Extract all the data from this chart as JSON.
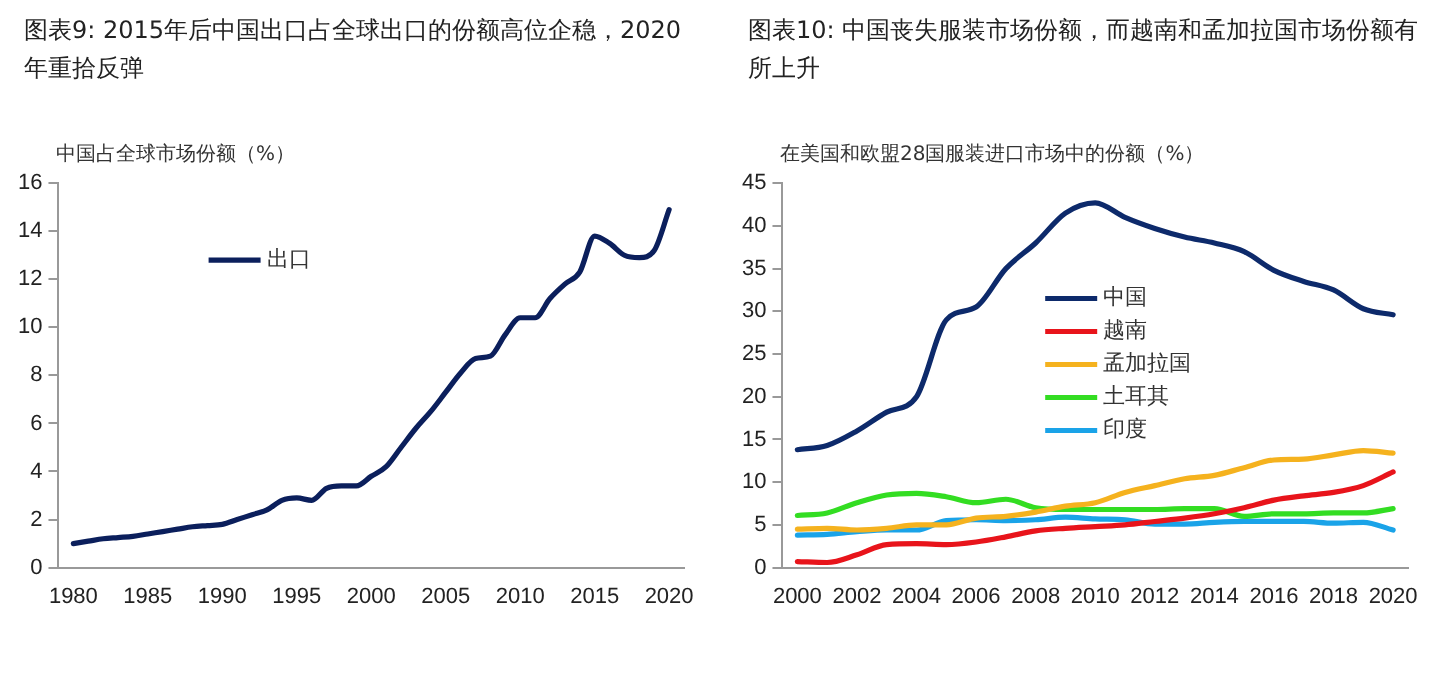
{
  "chart_data": [
    {
      "type": "line",
      "title": "图表9: 2015年后中国出口占全球出口的份额高位企稳，2020年重拾反弹",
      "ylabel": "中国占全球市场份额（%）",
      "x": [
        1980,
        1981,
        1982,
        1983,
        1984,
        1985,
        1986,
        1987,
        1988,
        1989,
        1990,
        1991,
        1992,
        1993,
        1994,
        1995,
        1996,
        1997,
        1998,
        1999,
        2000,
        2001,
        2002,
        2003,
        2004,
        2005,
        2006,
        2007,
        2008,
        2009,
        2010,
        2011,
        2012,
        2013,
        2014,
        2015,
        2016,
        2017,
        2018,
        2019,
        2020
      ],
      "series": [
        {
          "name": "出口",
          "color": "#0b1f5c",
          "values": [
            1.0,
            1.1,
            1.2,
            1.25,
            1.3,
            1.4,
            1.5,
            1.6,
            1.7,
            1.75,
            1.8,
            2.0,
            2.2,
            2.4,
            2.8,
            2.9,
            2.8,
            3.3,
            3.4,
            3.4,
            3.8,
            4.2,
            5.0,
            5.8,
            6.5,
            7.3,
            8.1,
            8.7,
            8.8,
            9.7,
            10.4,
            10.4,
            11.2,
            11.8,
            12.3,
            13.8,
            13.5,
            13.0,
            12.9,
            13.2,
            14.9
          ]
        }
      ],
      "xlim": [
        1979,
        2021
      ],
      "xticks": [
        1980,
        1985,
        1990,
        1995,
        2000,
        2005,
        2010,
        2015,
        2020
      ],
      "ylim": [
        0,
        16
      ],
      "yticks": [
        0,
        2,
        4,
        6,
        8,
        10,
        12,
        14,
        16
      ],
      "grid": false,
      "legend": "top left",
      "marker": "none",
      "line_style": "solid"
    },
    {
      "type": "line",
      "title": "图表10: 中国丧失服装市场份额，而越南和孟加拉国市场份额有所上升",
      "ylabel": "在美国和欧盟28国服装进口市场中的份额（%）",
      "x": [
        2000,
        2001,
        2002,
        2003,
        2004,
        2005,
        2006,
        2007,
        2008,
        2009,
        2010,
        2011,
        2012,
        2013,
        2014,
        2015,
        2016,
        2017,
        2018,
        2019,
        2020
      ],
      "series": [
        {
          "name": "中国",
          "color": "#0d2a6b",
          "values": [
            13.8,
            14.3,
            16.0,
            18.2,
            20.0,
            29.0,
            30.5,
            35.0,
            38.0,
            41.5,
            42.7,
            41.0,
            39.7,
            38.7,
            38.0,
            37.0,
            34.8,
            33.5,
            32.5,
            30.3,
            29.6
          ]
        },
        {
          "name": "越南",
          "color": "#e8141b",
          "values": [
            0.7,
            0.6,
            1.5,
            2.7,
            2.8,
            2.7,
            3.0,
            3.6,
            4.3,
            4.6,
            4.8,
            5.0,
            5.4,
            5.8,
            6.3,
            7.0,
            7.9,
            8.4,
            8.8,
            9.6,
            11.2
          ]
        },
        {
          "name": "孟加拉国",
          "color": "#f5b21e",
          "values": [
            4.5,
            4.6,
            4.4,
            4.6,
            5.0,
            5.0,
            5.8,
            6.0,
            6.5,
            7.2,
            7.6,
            8.8,
            9.6,
            10.4,
            10.8,
            11.7,
            12.6,
            12.7,
            13.2,
            13.7,
            13.4
          ]
        },
        {
          "name": "土耳其",
          "color": "#33dd22",
          "values": [
            6.1,
            6.4,
            7.6,
            8.5,
            8.7,
            8.3,
            7.6,
            8.0,
            7.0,
            6.8,
            6.8,
            6.8,
            6.8,
            6.9,
            6.9,
            6.0,
            6.3,
            6.3,
            6.4,
            6.4,
            6.9
          ]
        },
        {
          "name": "印度",
          "color": "#1aa3e8",
          "values": [
            3.8,
            3.9,
            4.2,
            4.4,
            4.4,
            5.5,
            5.6,
            5.5,
            5.6,
            5.9,
            5.7,
            5.6,
            5.1,
            5.1,
            5.3,
            5.4,
            5.4,
            5.4,
            5.2,
            5.3,
            4.4
          ]
        }
      ],
      "xlim": [
        1999.5,
        2020.5
      ],
      "xticks": [
        2000,
        2002,
        2004,
        2006,
        2008,
        2010,
        2012,
        2014,
        2016,
        2018,
        2020
      ],
      "ylim": [
        0,
        45
      ],
      "yticks": [
        0,
        5,
        10,
        15,
        20,
        25,
        30,
        35,
        40,
        45
      ],
      "grid": false,
      "legend": "center",
      "marker": "none",
      "line_style": "solid"
    }
  ]
}
